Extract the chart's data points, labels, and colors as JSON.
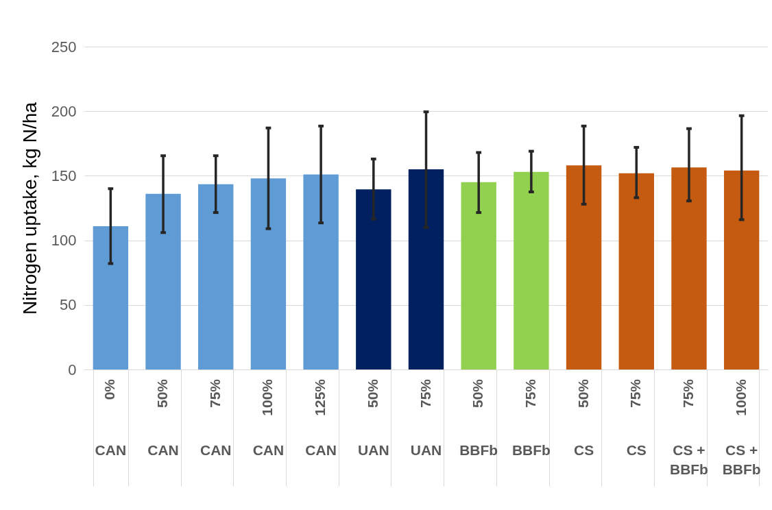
{
  "chart_data": {
    "type": "bar",
    "ylabel": "Nitrogen uptake, kg N/ha",
    "categories": [
      "0%\nCAN",
      "50%\nCAN",
      "75%\nCAN",
      "100%\nCAN",
      "125%\nCAN",
      "50%\nUAN",
      "75%\nUAN",
      "50%\nBBFb",
      "75%\nBBFb",
      "50%\nCS",
      "75%\nCS",
      "75%\nCS +\nBBFb",
      "100%\nCS +\nBBFb"
    ],
    "values": [
      111,
      136,
      143.5,
      148,
      151,
      139.5,
      155,
      145,
      153,
      158,
      152,
      156.5,
      154
    ],
    "errors": [
      [
        82,
        140
      ],
      [
        106,
        165.5
      ],
      [
        121.5,
        165.5
      ],
      [
        109,
        187
      ],
      [
        113.5,
        188.5
      ],
      [
        116.5,
        163
      ],
      [
        110,
        199.5
      ],
      [
        121.5,
        168
      ],
      [
        137.5,
        169
      ],
      [
        128,
        188.5
      ],
      [
        133,
        172
      ],
      [
        130.5,
        186.5
      ],
      [
        116,
        196.5
      ]
    ],
    "colors": [
      "#5f9bd5",
      "#5f9bd5",
      "#5f9bd5",
      "#5f9bd5",
      "#5f9bd5",
      "#002060",
      "#002060",
      "#92d050",
      "#92d050",
      "#c55a11",
      "#c55a11",
      "#c55a11",
      "#c55a11"
    ],
    "ylim": [
      0,
      250
    ],
    "yticks": [
      0,
      50,
      100,
      150,
      200,
      250
    ],
    "grid": "y"
  }
}
